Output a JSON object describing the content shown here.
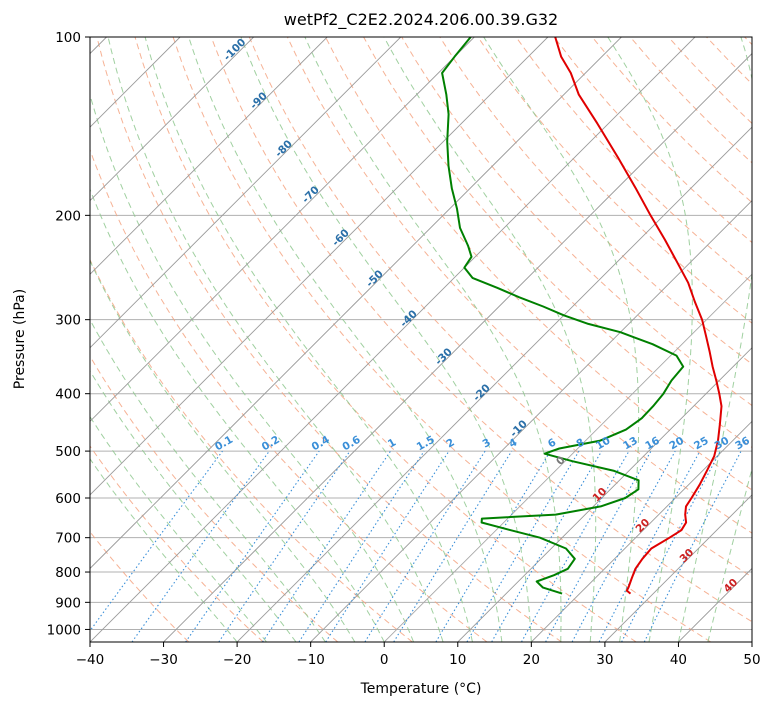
{
  "chart_data": {
    "type": "skew-t",
    "title": "wetPf2_C2E2.2024.206.00.39.G32",
    "xlabel": "Temperature (°C)",
    "ylabel": "Pressure (hPa)",
    "xlim": [
      -40,
      50
    ],
    "ylim": [
      1050,
      100
    ],
    "x_ticks": [
      -40,
      -30,
      -20,
      -10,
      0,
      10,
      20,
      30,
      40,
      50
    ],
    "y_ticks": [
      100,
      200,
      300,
      400,
      500,
      600,
      700,
      800,
      900,
      1000
    ],
    "grid": true,
    "isotherm_labels": [
      "-100",
      "-90",
      "-80",
      "-70",
      "-60",
      "-50",
      "-40",
      "-30",
      "-20",
      "-10",
      "0",
      "10",
      "20",
      "30",
      "40"
    ],
    "mixing_ratio_labels": [
      "0.1",
      "0.2",
      "0.4",
      "0.6",
      "1",
      "1.5",
      "2",
      "3",
      "4",
      "6",
      "8",
      "10",
      "13",
      "16",
      "20",
      "25",
      "30",
      "36"
    ],
    "mixing_ratio_values": [
      0.1,
      0.2,
      0.4,
      0.6,
      1,
      1.5,
      2,
      3,
      4,
      6,
      8,
      10,
      13,
      16,
      20,
      25,
      30,
      36
    ],
    "colors": {
      "temperature": "#e00000",
      "dewpoint": "#008000",
      "dry_adiabat": "#f4a582",
      "moist_adiabat": "#8fc88f",
      "mixing_ratio": "#3a8fd8",
      "isotherm": "#888888",
      "isotherm_label_cold": "#2a6fa8",
      "isotherm_label_warm": "#cc2222",
      "isotherm_label_zero": "#777777"
    },
    "series": [
      {
        "role": "temperature",
        "points": [
          {
            "p": 870,
            "t": 26.9
          },
          {
            "p": 860,
            "t": 26.0
          },
          {
            "p": 850,
            "t": 25.8
          },
          {
            "p": 820,
            "t": 25.0
          },
          {
            "p": 790,
            "t": 24.2
          },
          {
            "p": 760,
            "t": 23.8
          },
          {
            "p": 730,
            "t": 23.6
          },
          {
            "p": 700,
            "t": 24.6
          },
          {
            "p": 680,
            "t": 25.2
          },
          {
            "p": 660,
            "t": 24.8
          },
          {
            "p": 640,
            "t": 23.6
          },
          {
            "p": 620,
            "t": 22.6
          },
          {
            "p": 600,
            "t": 22.2
          },
          {
            "p": 570,
            "t": 21.5
          },
          {
            "p": 540,
            "t": 20.6
          },
          {
            "p": 510,
            "t": 19.6
          },
          {
            "p": 480,
            "t": 18.0
          },
          {
            "p": 450,
            "t": 16.0
          },
          {
            "p": 420,
            "t": 13.8
          },
          {
            "p": 400,
            "t": 11.8
          },
          {
            "p": 380,
            "t": 9.6
          },
          {
            "p": 360,
            "t": 7.2
          },
          {
            "p": 340,
            "t": 4.8
          },
          {
            "p": 320,
            "t": 2.2
          },
          {
            "p": 300,
            "t": -0.6
          },
          {
            "p": 280,
            "t": -4.0
          },
          {
            "p": 260,
            "t": -7.5
          },
          {
            "p": 240,
            "t": -11.8
          },
          {
            "p": 220,
            "t": -16.5
          },
          {
            "p": 200,
            "t": -21.8
          },
          {
            "p": 180,
            "t": -27.5
          },
          {
            "p": 160,
            "t": -34.0
          },
          {
            "p": 140,
            "t": -41.5
          },
          {
            "p": 125,
            "t": -48.0
          },
          {
            "p": 115,
            "t": -52.0
          },
          {
            "p": 108,
            "t": -55.5
          },
          {
            "p": 100,
            "t": -59.0
          }
        ]
      },
      {
        "role": "dewpoint",
        "points": [
          {
            "p": 870,
            "t": 17.6
          },
          {
            "p": 850,
            "t": 14.2
          },
          {
            "p": 830,
            "t": 12.5
          },
          {
            "p": 810,
            "t": 14.0
          },
          {
            "p": 790,
            "t": 15.0
          },
          {
            "p": 760,
            "t": 14.6
          },
          {
            "p": 730,
            "t": 12.0
          },
          {
            "p": 700,
            "t": 7.0
          },
          {
            "p": 680,
            "t": 2.0
          },
          {
            "p": 660,
            "t": -3.0
          },
          {
            "p": 650,
            "t": -3.5
          },
          {
            "p": 640,
            "t": 6.0
          },
          {
            "p": 620,
            "t": 11.0
          },
          {
            "p": 600,
            "t": 13.2
          },
          {
            "p": 580,
            "t": 13.8
          },
          {
            "p": 560,
            "t": 12.6
          },
          {
            "p": 540,
            "t": 8.0
          },
          {
            "p": 520,
            "t": 1.0
          },
          {
            "p": 505,
            "t": -3.8
          },
          {
            "p": 495,
            "t": -2.5
          },
          {
            "p": 480,
            "t": 2.0
          },
          {
            "p": 460,
            "t": 4.0
          },
          {
            "p": 440,
            "t": 4.6
          },
          {
            "p": 420,
            "t": 4.5
          },
          {
            "p": 400,
            "t": 4.2
          },
          {
            "p": 380,
            "t": 3.5
          },
          {
            "p": 360,
            "t": 3.2
          },
          {
            "p": 345,
            "t": 0.8
          },
          {
            "p": 330,
            "t": -4.0
          },
          {
            "p": 315,
            "t": -10.0
          },
          {
            "p": 305,
            "t": -15.5
          },
          {
            "p": 295,
            "t": -20.0
          },
          {
            "p": 285,
            "t": -24.0
          },
          {
            "p": 275,
            "t": -28.5
          },
          {
            "p": 265,
            "t": -32.8
          },
          {
            "p": 255,
            "t": -37.5
          },
          {
            "p": 245,
            "t": -40.0
          },
          {
            "p": 235,
            "t": -40.5
          },
          {
            "p": 225,
            "t": -42.5
          },
          {
            "p": 210,
            "t": -46.0
          },
          {
            "p": 195,
            "t": -49.0
          },
          {
            "p": 180,
            "t": -52.5
          },
          {
            "p": 165,
            "t": -56.0
          },
          {
            "p": 150,
            "t": -59.5
          },
          {
            "p": 135,
            "t": -63.0
          },
          {
            "p": 125,
            "t": -66.0
          },
          {
            "p": 115,
            "t": -69.5
          },
          {
            "p": 108,
            "t": -70.0
          },
          {
            "p": 100,
            "t": -70.5
          }
        ]
      }
    ]
  }
}
